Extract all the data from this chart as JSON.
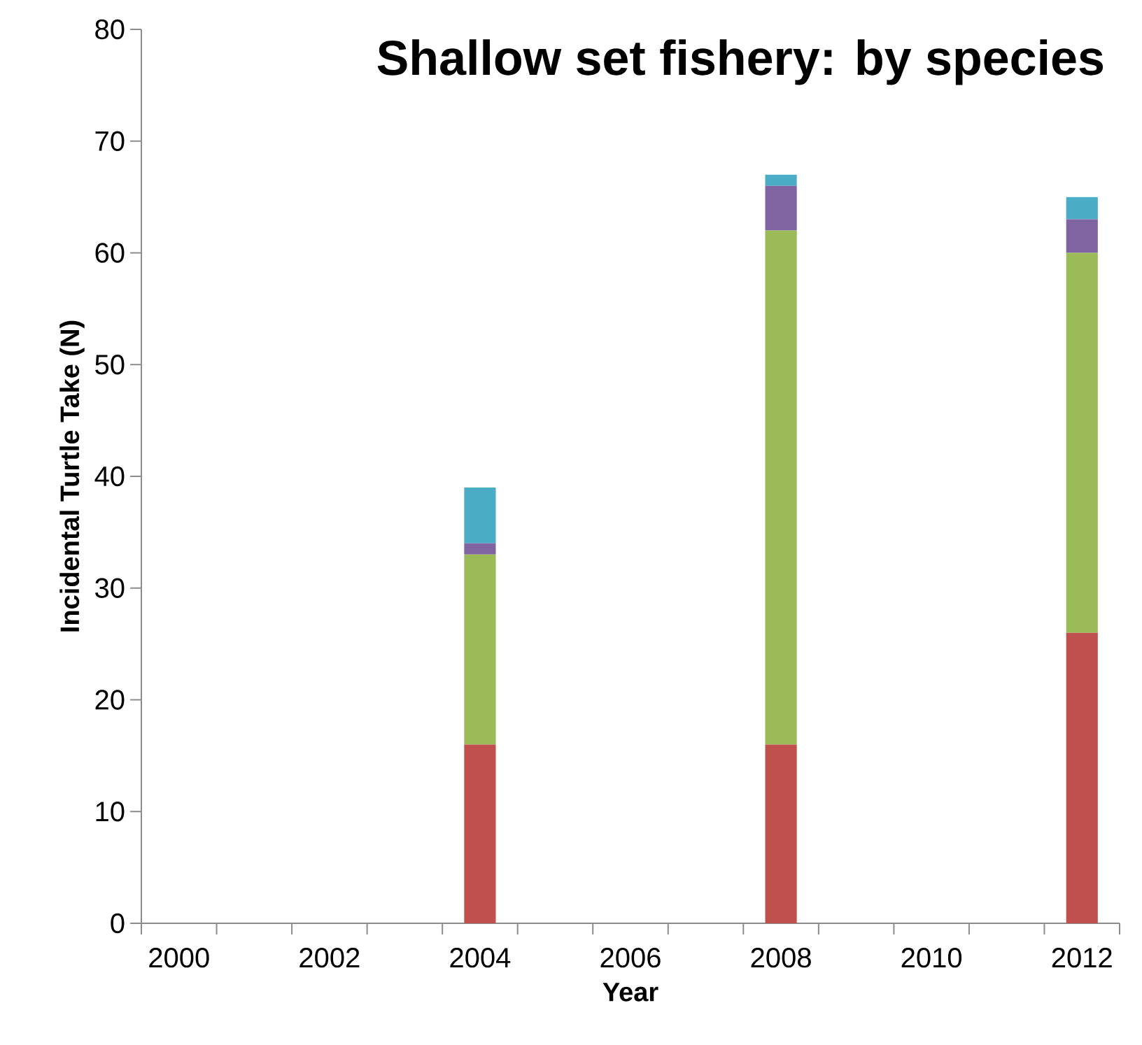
{
  "chart_data": {
    "type": "bar",
    "stacked": true,
    "title": "Shallow set fishery: by species",
    "xlabel": "Year",
    "ylabel": "Incidental Turtle Take (N)",
    "x": [
      2004,
      2008,
      2012
    ],
    "series": [
      {
        "color": "#c0504d",
        "values": [
          16,
          16,
          26
        ]
      },
      {
        "color": "#9bbb59",
        "values": [
          17,
          46,
          34
        ]
      },
      {
        "color": "#8064a2",
        "values": [
          1,
          4,
          3
        ]
      },
      {
        "color": "#4bacc6",
        "values": [
          5,
          1,
          2
        ]
      }
    ],
    "xlim": [
      1999.5,
      2012.5
    ],
    "xticks": [
      {
        "value": 1999.5,
        "label": null
      },
      2000,
      {
        "value": 2000.5,
        "label": null
      },
      {
        "value": 2001.5,
        "label": null
      },
      2002,
      {
        "value": 2002.5,
        "label": null
      },
      {
        "value": 2003.5,
        "label": null
      },
      2004,
      {
        "value": 2004.5,
        "label": null
      },
      {
        "value": 2005.5,
        "label": null
      },
      2006,
      {
        "value": 2006.5,
        "label": null
      },
      {
        "value": 2007.5,
        "label": null
      },
      2008,
      {
        "value": 2008.5,
        "label": null
      },
      {
        "value": 2009.5,
        "label": null
      },
      2010,
      {
        "value": 2010.5,
        "label": null
      },
      {
        "value": 2011.5,
        "label": null
      },
      2012,
      {
        "value": 2012.5,
        "label": null
      }
    ],
    "ylim": [
      0,
      80
    ],
    "yticks": [
      0,
      10,
      20,
      30,
      40,
      50,
      60,
      70,
      80
    ]
  }
}
